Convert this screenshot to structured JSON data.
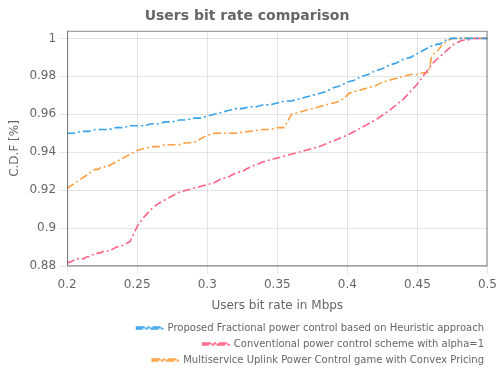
{
  "chart_data": {
    "type": "line",
    "title": "Users bit rate comparison",
    "xlabel": "Users bit rate in Mbps",
    "ylabel": "C.D.F [%]",
    "xlim": [
      0.2,
      0.5
    ],
    "ylim": [
      0.88,
      1.004
    ],
    "xticks": [
      0.2,
      0.25,
      0.3,
      0.35,
      0.4,
      0.45,
      0.5
    ],
    "yticks": [
      0.88,
      0.9,
      0.92,
      0.94,
      0.96,
      0.98,
      1.0
    ],
    "grid": true,
    "legend": "lower right",
    "series": [
      {
        "name": "Proposed Fractional power control based on Heuristic approach",
        "line_style": "dashdot",
        "x": [
          0.2,
          0.205,
          0.21,
          0.215,
          0.22,
          0.225,
          0.23,
          0.235,
          0.24,
          0.245,
          0.25,
          0.255,
          0.26,
          0.265,
          0.27,
          0.275,
          0.28,
          0.285,
          0.29,
          0.295,
          0.3,
          0.305,
          0.31,
          0.315,
          0.32,
          0.325,
          0.33,
          0.335,
          0.34,
          0.345,
          0.35,
          0.355,
          0.36,
          0.365,
          0.37,
          0.375,
          0.38,
          0.385,
          0.39,
          0.395,
          0.4,
          0.405,
          0.41,
          0.415,
          0.42,
          0.425,
          0.43,
          0.435,
          0.44,
          0.445,
          0.45,
          0.455,
          0.46,
          0.462,
          0.464,
          0.466,
          0.468,
          0.47,
          0.472,
          0.474,
          0.476,
          0.478,
          0.48,
          0.49,
          0.5
        ],
        "values": [
          0.95,
          0.95,
          0.951,
          0.951,
          0.952,
          0.952,
          0.952,
          0.953,
          0.953,
          0.954,
          0.954,
          0.954,
          0.955,
          0.955,
          0.956,
          0.956,
          0.957,
          0.957,
          0.958,
          0.958,
          0.959,
          0.96,
          0.961,
          0.962,
          0.963,
          0.963,
          0.964,
          0.964,
          0.965,
          0.965,
          0.966,
          0.967,
          0.967,
          0.968,
          0.969,
          0.97,
          0.971,
          0.972,
          0.974,
          0.975,
          0.977,
          0.978,
          0.98,
          0.981,
          0.983,
          0.984,
          0.986,
          0.987,
          0.989,
          0.99,
          0.992,
          0.994,
          0.996,
          0.996,
          0.997,
          0.997,
          0.998,
          0.999,
          0.999,
          1.0,
          1.0,
          1.0,
          1.0,
          1.0,
          1.0
        ]
      },
      {
        "name": "Conventional power control scheme with alpha=1",
        "line_style": "dashdot",
        "x": [
          0.2,
          0.202,
          0.204,
          0.206,
          0.208,
          0.21,
          0.212,
          0.214,
          0.216,
          0.218,
          0.22,
          0.222,
          0.224,
          0.226,
          0.228,
          0.23,
          0.235,
          0.24,
          0.245,
          0.25,
          0.255,
          0.26,
          0.265,
          0.27,
          0.275,
          0.28,
          0.285,
          0.29,
          0.295,
          0.3,
          0.305,
          0.31,
          0.315,
          0.32,
          0.325,
          0.33,
          0.34,
          0.35,
          0.36,
          0.37,
          0.38,
          0.39,
          0.4,
          0.41,
          0.42,
          0.43,
          0.435,
          0.44,
          0.445,
          0.45,
          0.455,
          0.458,
          0.461,
          0.464,
          0.467,
          0.47,
          0.473,
          0.476,
          0.479,
          0.482,
          0.485,
          0.49,
          0.495,
          0.5
        ],
        "values": [
          0.882,
          0.882,
          0.883,
          0.883,
          0.884,
          0.884,
          0.884,
          0.885,
          0.885,
          0.886,
          0.886,
          0.887,
          0.887,
          0.888,
          0.888,
          0.888,
          0.89,
          0.891,
          0.893,
          0.901,
          0.906,
          0.91,
          0.913,
          0.915,
          0.917,
          0.919,
          0.92,
          0.921,
          0.922,
          0.923,
          0.924,
          0.926,
          0.927,
          0.929,
          0.93,
          0.932,
          0.935,
          0.937,
          0.939,
          0.941,
          0.943,
          0.946,
          0.949,
          0.953,
          0.957,
          0.962,
          0.965,
          0.968,
          0.972,
          0.976,
          0.981,
          0.984,
          0.987,
          0.989,
          0.991,
          0.993,
          0.995,
          0.997,
          0.998,
          0.999,
          0.999,
          1.0,
          1.0,
          1.0
        ]
      },
      {
        "name": "Multiservice Uplink Power Control game with Convex Pricing",
        "line_style": "dashdot",
        "x": [
          0.2,
          0.202,
          0.204,
          0.206,
          0.208,
          0.21,
          0.212,
          0.214,
          0.216,
          0.218,
          0.22,
          0.222,
          0.224,
          0.226,
          0.228,
          0.23,
          0.235,
          0.24,
          0.245,
          0.25,
          0.255,
          0.26,
          0.265,
          0.27,
          0.275,
          0.28,
          0.285,
          0.29,
          0.295,
          0.3,
          0.305,
          0.31,
          0.315,
          0.32,
          0.33,
          0.34,
          0.345,
          0.35,
          0.355,
          0.36,
          0.37,
          0.38,
          0.39,
          0.395,
          0.4,
          0.401,
          0.405,
          0.41,
          0.415,
          0.42,
          0.425,
          0.43,
          0.435,
          0.44,
          0.445,
          0.45,
          0.455,
          0.458,
          0.46,
          0.462,
          0.464,
          0.466,
          0.468,
          0.47,
          0.472,
          0.475,
          0.48,
          0.49,
          0.5
        ],
        "values": [
          0.921,
          0.922,
          0.923,
          0.924,
          0.925,
          0.926,
          0.927,
          0.928,
          0.929,
          0.93,
          0.931,
          0.931,
          0.932,
          0.932,
          0.933,
          0.933,
          0.935,
          0.937,
          0.939,
          0.941,
          0.942,
          0.943,
          0.943,
          0.944,
          0.944,
          0.944,
          0.945,
          0.945,
          0.947,
          0.949,
          0.95,
          0.95,
          0.95,
          0.95,
          0.951,
          0.952,
          0.952,
          0.953,
          0.953,
          0.96,
          0.962,
          0.964,
          0.966,
          0.967,
          0.97,
          0.971,
          0.972,
          0.973,
          0.974,
          0.975,
          0.977,
          0.978,
          0.979,
          0.98,
          0.981,
          0.981,
          0.982,
          0.982,
          0.99,
          0.992,
          0.993,
          0.995,
          0.997,
          0.998,
          0.999,
          1.0,
          1.0,
          1.0,
          1.0
        ]
      }
    ]
  }
}
